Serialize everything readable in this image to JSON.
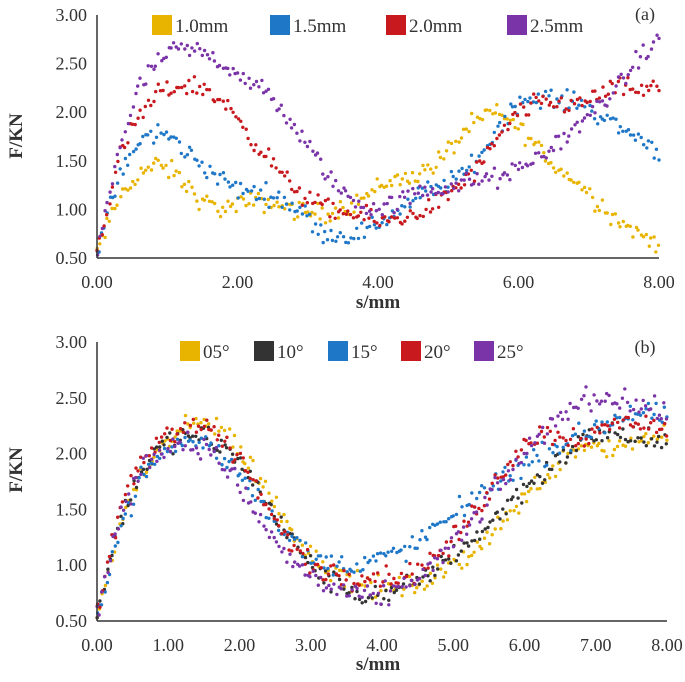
{
  "chart_data": [
    {
      "panel_label": "(a)",
      "type": "scatter",
      "xlabel": "s/mm",
      "ylabel": "F/KN",
      "xlim": [
        0,
        8
      ],
      "ylim": [
        0.5,
        3.0
      ],
      "xticks": [
        "0.00",
        "2.00",
        "4.00",
        "6.00",
        "8.00"
      ],
      "xtick_values": [
        0,
        2,
        4,
        6,
        8
      ],
      "yticks": [
        "0.50",
        "1.00",
        "1.50",
        "2.00",
        "2.50",
        "3.00"
      ],
      "ytick_values": [
        0.5,
        1.0,
        1.5,
        2.0,
        2.5,
        3.0
      ],
      "grid": false,
      "legend_position": "top",
      "series": [
        {
          "name": "1.0mm",
          "color": "#E8B400",
          "x": [
            0,
            0.3,
            0.6,
            0.85,
            1.1,
            1.3,
            1.5,
            1.8,
            2.0,
            2.3,
            2.6,
            2.9,
            3.2,
            3.5,
            3.8,
            4.1,
            4.4,
            4.7,
            5.0,
            5.3,
            5.6,
            5.8,
            6.0,
            6.2,
            6.5,
            6.8,
            7.1,
            7.4,
            7.7,
            8.0
          ],
          "y": [
            0.55,
            1.1,
            1.38,
            1.45,
            1.38,
            1.22,
            1.08,
            1.0,
            1.05,
            1.08,
            1.05,
            0.98,
            0.95,
            1.02,
            1.12,
            1.28,
            1.32,
            1.4,
            1.6,
            1.85,
            2.0,
            1.95,
            1.85,
            1.7,
            1.45,
            1.3,
            1.1,
            0.9,
            0.75,
            0.65
          ]
        },
        {
          "name": "1.5mm",
          "color": "#1F77C8",
          "x": [
            0,
            0.3,
            0.6,
            0.9,
            1.2,
            1.5,
            1.8,
            2.0,
            2.3,
            2.6,
            2.9,
            3.1,
            3.4,
            3.7,
            4.0,
            4.3,
            4.6,
            4.9,
            5.2,
            5.5,
            5.8,
            6.0,
            6.3,
            6.6,
            6.9,
            7.2,
            7.5,
            7.8,
            8.0
          ],
          "y": [
            0.55,
            1.3,
            1.7,
            1.8,
            1.65,
            1.45,
            1.3,
            1.2,
            1.18,
            1.12,
            1.0,
            0.82,
            0.72,
            0.75,
            0.85,
            1.0,
            1.15,
            1.25,
            1.35,
            1.6,
            1.95,
            2.1,
            2.15,
            2.12,
            2.1,
            1.95,
            1.82,
            1.7,
            1.6
          ]
        },
        {
          "name": "2.0mm",
          "color": "#C8191E",
          "x": [
            0,
            0.3,
            0.6,
            0.9,
            1.2,
            1.5,
            1.8,
            2.1,
            2.4,
            2.7,
            3.0,
            3.3,
            3.6,
            3.9,
            4.2,
            4.5,
            4.8,
            5.1,
            5.4,
            5.7,
            6.0,
            6.3,
            6.6,
            6.9,
            7.2,
            7.5,
            7.8,
            8.0
          ],
          "y": [
            0.55,
            1.5,
            1.95,
            2.2,
            2.28,
            2.25,
            2.1,
            1.85,
            1.55,
            1.3,
            1.1,
            1.0,
            0.95,
            0.9,
            0.88,
            0.95,
            1.05,
            1.2,
            1.4,
            1.7,
            2.0,
            2.1,
            2.08,
            2.1,
            2.2,
            2.25,
            2.22,
            2.25
          ]
        },
        {
          "name": "2.5mm",
          "color": "#7B33A8",
          "x": [
            0,
            0.3,
            0.6,
            0.9,
            1.2,
            1.5,
            1.8,
            2.1,
            2.4,
            2.7,
            3.0,
            3.3,
            3.6,
            3.9,
            4.2,
            4.5,
            4.8,
            5.1,
            5.4,
            5.7,
            6.0,
            6.3,
            6.6,
            6.9,
            7.2,
            7.5,
            7.8,
            8.0
          ],
          "y": [
            0.55,
            1.6,
            2.25,
            2.55,
            2.65,
            2.62,
            2.5,
            2.35,
            2.2,
            1.95,
            1.65,
            1.35,
            1.1,
            1.0,
            1.05,
            1.15,
            1.2,
            1.25,
            1.3,
            1.32,
            1.4,
            1.55,
            1.7,
            1.9,
            2.1,
            2.35,
            2.6,
            2.75
          ]
        }
      ]
    },
    {
      "panel_label": "(b)",
      "type": "scatter",
      "xlabel": "s/mm",
      "ylabel": "F/KN",
      "xlim": [
        0,
        8
      ],
      "ylim": [
        0.5,
        3.0
      ],
      "xticks": [
        "0.00",
        "1.00",
        "2.00",
        "3.00",
        "4.00",
        "5.00",
        "6.00",
        "7.00",
        "8.00"
      ],
      "xtick_values": [
        0,
        1,
        2,
        3,
        4,
        5,
        6,
        7,
        8
      ],
      "yticks": [
        "0.50",
        "1.00",
        "1.50",
        "2.00",
        "2.50",
        "3.00"
      ],
      "ytick_values": [
        0.5,
        1.0,
        1.5,
        2.0,
        2.5,
        3.0
      ],
      "grid": false,
      "legend_position": "top",
      "series": [
        {
          "name": "05°",
          "color": "#E8B400",
          "x": [
            0,
            0.3,
            0.6,
            0.9,
            1.2,
            1.5,
            1.8,
            2.1,
            2.4,
            2.7,
            3.0,
            3.3,
            3.6,
            3.9,
            4.2,
            4.5,
            4.8,
            5.1,
            5.4,
            5.7,
            6.0,
            6.3,
            6.6,
            6.9,
            7.2,
            7.5,
            7.8,
            8.0
          ],
          "y": [
            0.55,
            1.3,
            1.8,
            2.05,
            2.2,
            2.3,
            2.2,
            1.95,
            1.65,
            1.35,
            1.1,
            0.95,
            0.85,
            0.8,
            0.8,
            0.82,
            0.9,
            1.05,
            1.2,
            1.4,
            1.6,
            1.8,
            2.0,
            2.1,
            2.05,
            2.1,
            2.15,
            2.2
          ]
        },
        {
          "name": "10°",
          "color": "#333333",
          "x": [
            0,
            0.3,
            0.6,
            0.9,
            1.2,
            1.5,
            1.8,
            2.1,
            2.4,
            2.7,
            3.0,
            3.3,
            3.6,
            3.9,
            4.2,
            4.5,
            4.8,
            5.1,
            5.4,
            5.7,
            6.0,
            6.3,
            6.6,
            6.9,
            7.2,
            7.5,
            7.8,
            8.0
          ],
          "y": [
            0.55,
            1.35,
            1.85,
            2.05,
            2.15,
            2.15,
            2.05,
            1.85,
            1.55,
            1.25,
            1.0,
            0.85,
            0.75,
            0.72,
            0.75,
            0.85,
            1.0,
            1.15,
            1.3,
            1.5,
            1.7,
            1.85,
            2.0,
            2.15,
            2.2,
            2.15,
            2.1,
            2.05
          ]
        },
        {
          "name": "15°",
          "color": "#1F77C8",
          "x": [
            0,
            0.3,
            0.6,
            0.9,
            1.2,
            1.5,
            1.8,
            2.1,
            2.4,
            2.7,
            3.0,
            3.3,
            3.6,
            3.9,
            4.2,
            4.5,
            4.8,
            5.1,
            5.4,
            5.7,
            6.0,
            6.3,
            6.6,
            6.9,
            7.2,
            7.5,
            7.8,
            8.0
          ],
          "y": [
            0.55,
            1.3,
            1.75,
            2.0,
            2.1,
            2.1,
            1.95,
            1.75,
            1.5,
            1.25,
            1.08,
            1.0,
            1.0,
            1.05,
            1.1,
            1.2,
            1.35,
            1.5,
            1.65,
            1.8,
            1.9,
            2.0,
            2.1,
            2.2,
            2.3,
            2.35,
            2.35,
            2.3
          ]
        },
        {
          "name": "20°",
          "color": "#C8191E",
          "x": [
            0,
            0.3,
            0.6,
            0.9,
            1.2,
            1.5,
            1.8,
            2.1,
            2.4,
            2.7,
            3.0,
            3.3,
            3.6,
            3.9,
            4.2,
            4.5,
            4.8,
            5.1,
            5.4,
            5.7,
            6.0,
            6.3,
            6.6,
            6.9,
            7.2,
            7.5,
            7.8,
            8.0
          ],
          "y": [
            0.55,
            1.45,
            1.9,
            2.15,
            2.25,
            2.25,
            2.1,
            1.85,
            1.5,
            1.2,
            1.0,
            0.92,
            0.9,
            0.9,
            0.9,
            0.95,
            1.1,
            1.3,
            1.55,
            1.85,
            2.1,
            2.2,
            2.15,
            2.15,
            2.25,
            2.3,
            2.25,
            2.2
          ]
        },
        {
          "name": "25°",
          "color": "#7B33A8",
          "x": [
            0,
            0.3,
            0.6,
            0.9,
            1.2,
            1.5,
            1.8,
            2.1,
            2.4,
            2.7,
            3.0,
            3.3,
            3.6,
            3.9,
            4.2,
            4.5,
            4.8,
            5.1,
            5.4,
            5.7,
            6.0,
            6.3,
            6.6,
            6.9,
            7.2,
            7.5,
            7.8,
            8.0
          ],
          "y": [
            0.55,
            1.4,
            1.85,
            2.05,
            2.1,
            2.05,
            1.9,
            1.6,
            1.3,
            1.05,
            0.9,
            0.8,
            0.72,
            0.7,
            0.78,
            0.9,
            1.05,
            1.25,
            1.5,
            1.75,
            2.0,
            2.2,
            2.4,
            2.5,
            2.5,
            2.45,
            2.4,
            2.35
          ]
        }
      ]
    }
  ]
}
